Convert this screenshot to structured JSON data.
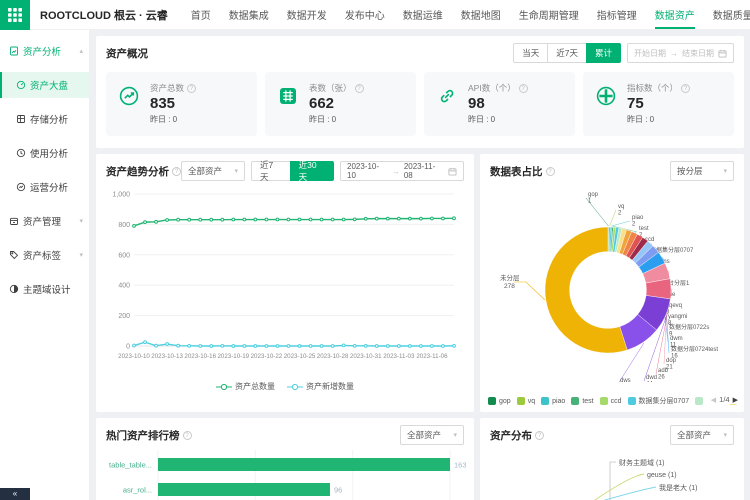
{
  "brand": {
    "name": "ROOTCLOUD 根云 · 云睿"
  },
  "navbar": {
    "items": [
      "首页",
      "数据集成",
      "数据开发",
      "发布中心",
      "数据运维",
      "数据地图",
      "生命周期管理",
      "指标管理",
      "数据资产",
      "数据质量"
    ],
    "active_item": "数据资产",
    "more_label": "...",
    "action_icons": [
      "plus-icon",
      "split-screen-icon",
      "notifications-icon",
      "settings-icon",
      "fullscreen-icon"
    ]
  },
  "sidebar": {
    "groups": [
      {
        "label": "资产分析",
        "icon": "chart-doc-icon",
        "expanded": true,
        "active": true,
        "children": [
          {
            "label": "资产大盘",
            "icon": "dashboard-icon",
            "active": true
          },
          {
            "label": "存储分析",
            "icon": "storage-icon",
            "active": false
          },
          {
            "label": "使用分析",
            "icon": "usage-clock-icon",
            "active": false
          },
          {
            "label": "运营分析",
            "icon": "operation-icon",
            "active": false
          }
        ]
      },
      {
        "label": "资产管理",
        "icon": "asset-manage-icon",
        "expanded": false,
        "children": []
      },
      {
        "label": "资产标签",
        "icon": "tag-icon",
        "expanded": false,
        "children": []
      },
      {
        "label": "主题域设计",
        "icon": "theme-domain-icon",
        "expanded": null,
        "children": []
      }
    ]
  },
  "overview": {
    "title": "资产概况",
    "range_options": [
      "当天",
      "近7天",
      "累计"
    ],
    "range_active": "累计",
    "date_start_placeholder": "开始日期",
    "date_end_placeholder": "结束日期",
    "cards": [
      {
        "title": "资产总数",
        "icon": "asset-total-icon",
        "value": "835",
        "yesterday": "昨日 : 0"
      },
      {
        "title": "表数（张）",
        "icon": "table-count-icon",
        "value": "662",
        "yesterday": "昨日 : 0"
      },
      {
        "title": "API数（个）",
        "icon": "api-count-icon",
        "value": "98",
        "yesterday": "昨日 : 0"
      },
      {
        "title": "指标数（个）",
        "icon": "metric-count-icon",
        "value": "75",
        "yesterday": "昨日 : 0"
      }
    ]
  },
  "trend": {
    "title": "资产趋势分析",
    "asset_filter": "全部资产",
    "range_options": [
      "近7天",
      "近30天"
    ],
    "range_active": "近30天",
    "date_start": "2023-10-10",
    "date_end": "2023-11-08"
  },
  "donut_panel": {
    "title": "数据表占比",
    "layer_filter": "按分层",
    "legend_page": "1/4",
    "outer_label": "未分层",
    "outer_value": "278"
  },
  "ranking": {
    "title": "热门资产排行榜",
    "asset_filter": "全部资产"
  },
  "distribution": {
    "title": "资产分布",
    "asset_filter": "全部资产",
    "nodes": [
      "财务主题域 (1)",
      "geuse (1)",
      "我是老大 (1)"
    ]
  },
  "chart_data": [
    {
      "type": "line",
      "title": "资产趋势分析",
      "x": [
        "2023-10-10",
        "2023-10-11",
        "2023-10-12",
        "2023-10-13",
        "2023-10-14",
        "2023-10-15",
        "2023-10-16",
        "2023-10-17",
        "2023-10-18",
        "2023-10-19",
        "2023-10-20",
        "2023-10-21",
        "2023-10-22",
        "2023-10-23",
        "2023-10-24",
        "2023-10-25",
        "2023-10-26",
        "2023-10-27",
        "2023-10-28",
        "2023-10-29",
        "2023-10-30",
        "2023-10-31",
        "2023-11-01",
        "2023-11-02",
        "2023-11-03",
        "2023-11-04",
        "2023-11-05",
        "2023-11-06",
        "2023-11-07",
        "2023-11-08"
      ],
      "x_tick_every": 3,
      "ylim": [
        0,
        1000
      ],
      "yticks": [
        0,
        200,
        400,
        600,
        800,
        1000
      ],
      "grid": true,
      "legend_position": "bottom",
      "series": [
        {
          "name": "资产总数量",
          "color": "#21b573",
          "values": [
            790,
            815,
            817,
            829,
            831,
            831,
            831,
            831,
            831,
            832,
            832,
            832,
            832,
            832,
            832,
            832,
            832,
            832,
            832,
            832,
            833,
            837,
            838,
            838,
            838,
            838,
            838,
            839,
            839,
            840
          ]
        },
        {
          "name": "资产新增数量",
          "color": "#4fd0e0",
          "values": [
            3,
            25,
            2,
            13,
            2,
            1,
            0,
            0,
            1,
            0,
            0,
            0,
            0,
            0,
            0,
            0,
            0,
            0,
            0,
            4,
            1,
            1,
            0,
            0,
            0,
            0,
            0,
            0,
            0,
            1
          ]
        }
      ]
    },
    {
      "type": "pie",
      "title": "数据表占比",
      "inner_radius_ratio": 0.61,
      "slices": [
        {
          "name": "gop",
          "value": 1,
          "color": "#138a4e"
        },
        {
          "name": "vq",
          "value": 2,
          "color": "#9dc93e"
        },
        {
          "name": "piao",
          "value": 2,
          "color": "#3cc3c9"
        },
        {
          "name": "test",
          "value": 2,
          "color": "#47b178"
        },
        {
          "name": "ccd",
          "value": 3,
          "color": "#a5d96a"
        },
        {
          "name": "数据集分层0707",
          "value": 4,
          "color": "#4ecbe0"
        },
        {
          "name": "doms",
          "value": 4,
          "color": "#b9e8c9"
        },
        {
          "name": "dim",
          "value": 6,
          "color": "#f7e08a"
        },
        {
          "name": "智台分层1",
          "value": 7,
          "color": "#f0a43c"
        },
        {
          "name": "dlue",
          "value": 8,
          "color": "#ef8445"
        },
        {
          "name": "sqevq",
          "value": 8,
          "color": "#e05353"
        },
        {
          "name": "yangmi",
          "value": 8,
          "color": "#9e2b47"
        },
        {
          "name": "数据分层0722s",
          "value": 9,
          "color": "#96c6f7"
        },
        {
          "name": "dwm",
          "value": 11,
          "color": "#7e9cf2"
        },
        {
          "name": "数据分层0724test",
          "value": 16,
          "color": "#2b9ef0"
        },
        {
          "name": "dop",
          "value": 21,
          "color": "#f08ca0"
        },
        {
          "name": "adb",
          "value": 26,
          "color": "#e8647f"
        },
        {
          "name": "dwd",
          "value": 44,
          "color": "#7b3fd6"
        },
        {
          "name": "dws",
          "value": 46,
          "color": "#8951ea"
        },
        {
          "name": "未分层",
          "value": 278,
          "color": "#efb306"
        }
      ]
    },
    {
      "type": "bar",
      "title": "热门资产排行榜",
      "orientation": "horizontal",
      "categories": [
        "table_table...",
        "asr_rol..."
      ],
      "values": [
        163,
        96
      ],
      "bar_color": "#21b573",
      "xlim": [
        0,
        180
      ]
    }
  ]
}
